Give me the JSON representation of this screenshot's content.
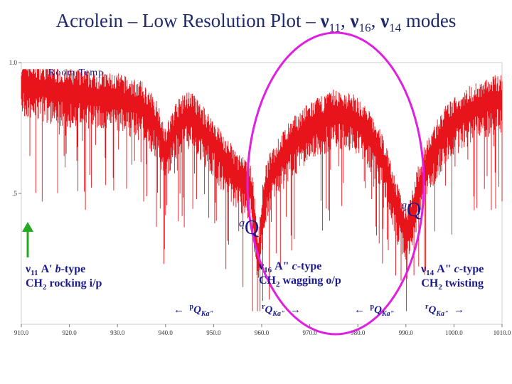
{
  "title": {
    "prefix": "Acrolein – Low Resolution Plot – ",
    "nu": "ν",
    "modes": [
      "11",
      "16",
      "14"
    ],
    "suffix": " modes"
  },
  "chart_data": {
    "type": "line",
    "xlim": [
      910.0,
      1010.0
    ],
    "ylim": [
      0.0,
      1.0
    ],
    "x_ticks": [
      "910.0",
      "920.0",
      "930.0",
      "940.0",
      "950.0",
      "960.0",
      "970.0",
      "980.0",
      "990.0",
      "1000.0",
      "1010.0"
    ],
    "y_ticks": [
      "1.0",
      ".5"
    ],
    "series": [
      {
        "name": "Room Temp.",
        "color": "#e8141b",
        "x": [
          910.0,
          915.0,
          920.0,
          925.0,
          930.0,
          935.0,
          938.5,
          940.0,
          942.0,
          945.0,
          947.5,
          950.0,
          952.0,
          955.0,
          958.0,
          959.2,
          960.5,
          962.0,
          964.0,
          966.0,
          968.0,
          970.0,
          972.0,
          975.0,
          978.0,
          980.0,
          982.0,
          984.0,
          986.0,
          988.0,
          990.0,
          992.0,
          994.0,
          996.0,
          998.0,
          1000.0,
          1002.0,
          1005.0,
          1008.0,
          1010.0
        ],
        "y": [
          0.91,
          0.89,
          0.87,
          0.86,
          0.85,
          0.82,
          0.74,
          0.64,
          0.74,
          0.79,
          0.73,
          0.68,
          0.62,
          0.55,
          0.5,
          0.22,
          0.48,
          0.56,
          0.62,
          0.67,
          0.71,
          0.74,
          0.76,
          0.79,
          0.78,
          0.76,
          0.72,
          0.66,
          0.58,
          0.44,
          0.34,
          0.46,
          0.58,
          0.66,
          0.72,
          0.76,
          0.79,
          0.82,
          0.84,
          0.85
        ]
      }
    ]
  },
  "labels": {
    "room_temp": "Room Temp.",
    "nu11_line1_mode": "11",
    "nu11_line1_text": " A' ",
    "nu11_line1_type": "b",
    "nu11_line1_tail": "-type",
    "nu11_line2_a": "CH",
    "nu11_line2_sub": "2",
    "nu11_line2_b": " rocking i/p",
    "nu16_line1_mode": "16",
    "nu16_line1_text": " A\" ",
    "nu16_line1_type": "c",
    "nu16_line1_tail": "-type",
    "nu16_line2_a": "CH",
    "nu16_line2_sub": "2",
    "nu16_line2_b": " wagging o/p",
    "nu14_line1_mode": "14",
    "nu14_line1_text": " A\" ",
    "nu14_line1_type": "c",
    "nu14_line1_tail": "-type",
    "nu14_line2_a": "CH",
    "nu14_line2_sub": "2",
    "nu14_line2_b": " twisting",
    "qq_sup": "q",
    "qq_main": "Q",
    "pq_arrow": "←",
    "pq_sup": "p",
    "pq_main": "Q",
    "pq_sub": "Ka\"",
    "rq_sup": "r",
    "rq_main": "Q",
    "rq_sub": "Ka\"",
    "rq_arrow": "→"
  },
  "colors": {
    "spectrum": "#e8141b",
    "ellipse": "#e020e0",
    "arrow": "#22aa22",
    "annotation": "#1a1a8c"
  }
}
